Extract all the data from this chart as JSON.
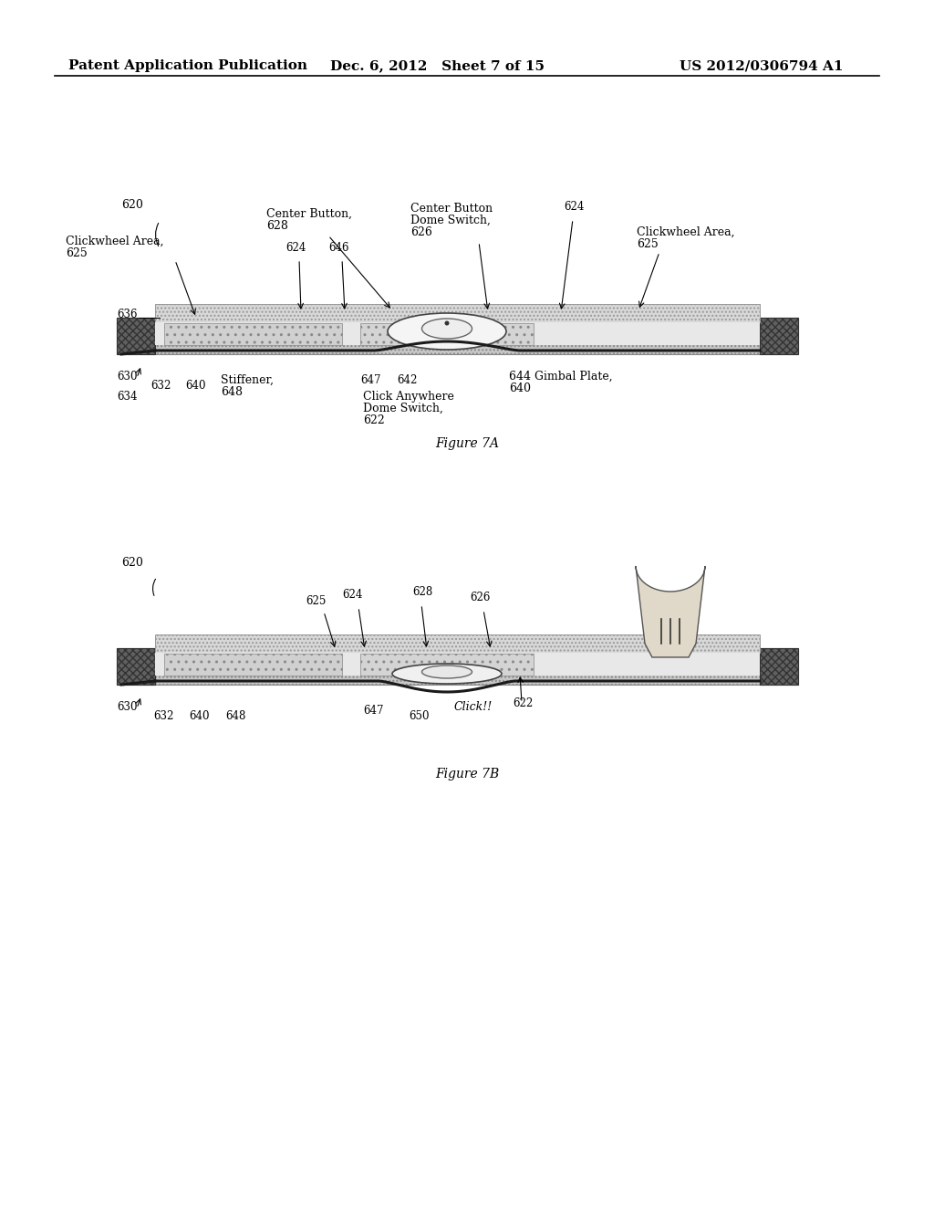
{
  "header_left": "Patent Application Publication",
  "header_mid": "Dec. 6, 2012   Sheet 7 of 15",
  "header_right": "US 2012/0306794 A1",
  "fig7a_caption": "Figure 7A",
  "fig7b_caption": "Figure 7B",
  "bg": "#ffffff",
  "tc": "#000000"
}
